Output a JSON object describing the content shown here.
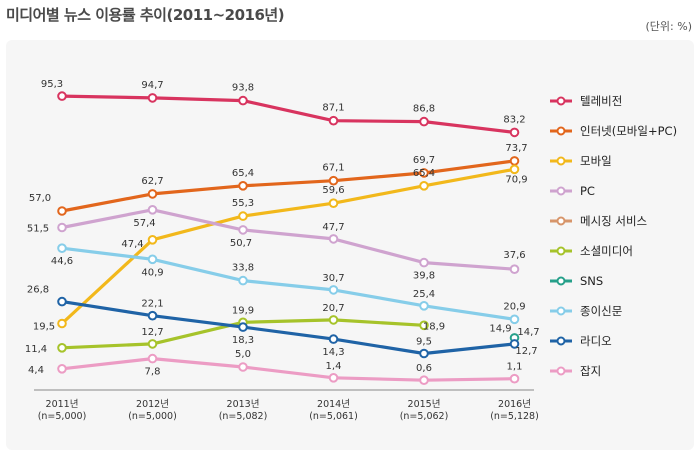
{
  "page": {
    "title": "미디어별 뉴스 이용률 추이(2011~2016년)",
    "unit": "(단위: %)"
  },
  "chart_data": {
    "type": "line",
    "title": "미디어별 뉴스 이용률 추이(2011~2016년)",
    "unit": "(단위: %)",
    "categories": [
      [
        "2011년",
        "(n=5,000)"
      ],
      [
        "2012년",
        "(n=5,000)"
      ],
      [
        "2013년",
        "(n=5,082)"
      ],
      [
        "2014년",
        "(n=5,061)"
      ],
      [
        "2015년",
        "(n=5,062)"
      ],
      [
        "2016년",
        "(n=5,128)"
      ]
    ],
    "ylim": [
      0,
      100
    ],
    "series": [
      {
        "name": "텔레비전",
        "color": "#d8345f",
        "values": [
          95.3,
          94.7,
          93.8,
          87.1,
          86.8,
          83.2
        ],
        "labels": [
          "95,3",
          "94,7",
          "93,8",
          "87,1",
          "86,8",
          "83,2"
        ]
      },
      {
        "name": "인터넷(모바일+PC)",
        "color": "#e2661c",
        "values": [
          57.0,
          62.7,
          65.4,
          67.1,
          69.7,
          73.7
        ],
        "labels": [
          "57,0",
          "62,7",
          "65,4",
          "67,1",
          "69,7",
          "73,7"
        ]
      },
      {
        "name": "모바일",
        "color": "#f2b81b",
        "values": [
          19.5,
          47.4,
          55.3,
          59.6,
          65.4,
          70.9
        ],
        "labels": [
          "19,5",
          "47,4",
          "55,3",
          "59,6",
          "65,4",
          "70,9"
        ]
      },
      {
        "name": "PC",
        "color": "#cfa3cf",
        "values": [
          51.5,
          57.4,
          50.7,
          47.7,
          39.8,
          37.6
        ],
        "labels": [
          "51,5",
          "57,4",
          "50,7",
          "47,7",
          "39,8",
          "37,6"
        ]
      },
      {
        "name": "메시징 서비스",
        "color": "#d7956a",
        "values": [
          null,
          null,
          null,
          null,
          null,
          null
        ],
        "labels": [
          "",
          "",
          "",
          "",
          "",
          ""
        ]
      },
      {
        "name": "소셜미디어",
        "color": "#a6c32a",
        "values": [
          11.4,
          12.7,
          19.9,
          20.7,
          18.9,
          null
        ],
        "labels": [
          "11,4",
          "12,7",
          "19,9",
          "20,7",
          "18,9",
          ""
        ]
      },
      {
        "name": "SNS",
        "color": "#26a08a",
        "values": [
          null,
          null,
          null,
          null,
          null,
          14.7
        ],
        "labels": [
          "",
          "",
          "",
          "",
          "",
          "14,7"
        ]
      },
      {
        "name": "종이신문",
        "color": "#86cde9",
        "values": [
          44.6,
          40.9,
          33.8,
          30.7,
          25.4,
          20.9
        ],
        "labels": [
          "44,6",
          "40,9",
          "33,8",
          "30,7",
          "25,4",
          "20,9"
        ]
      },
      {
        "name": "라디오",
        "color": "#1f63a6",
        "values": [
          26.8,
          22.1,
          18.3,
          14.3,
          9.5,
          12.7
        ],
        "labels": [
          "26,8",
          "22,1",
          "18,3",
          "14,3",
          "9,5",
          "12,7"
        ]
      },
      {
        "name": "잡지",
        "color": "#ec9cc4",
        "values": [
          4.4,
          7.8,
          5.0,
          1.4,
          0.6,
          1.1
        ],
        "labels": [
          "4,4",
          "7,8",
          "5,0",
          "1,4",
          "0,6",
          "1,1"
        ]
      }
    ],
    "extra_annotations": [
      {
        "text": "14,9",
        "x_index": 5,
        "value": 14.9
      }
    ],
    "legend_position": "right",
    "grid": false
  }
}
